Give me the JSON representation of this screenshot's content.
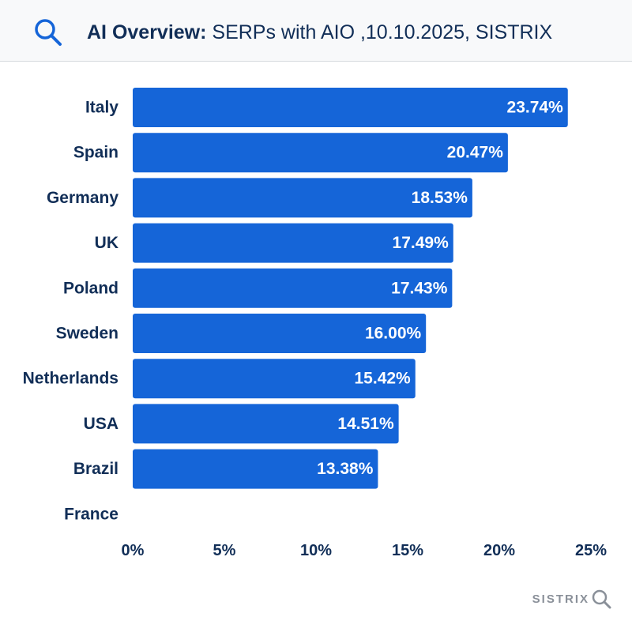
{
  "header": {
    "title_bold": "AI Overview:",
    "title_rest": " SERPs with AIO ,10.10.2025, SISTRIX",
    "icon": "search-icon"
  },
  "colors": {
    "bar": "#1565d8",
    "text": "#112e57",
    "header_bg": "#f8f9fa",
    "logo": "#8a9099"
  },
  "chart_data": {
    "type": "bar",
    "orientation": "horizontal",
    "categories": [
      "Italy",
      "Spain",
      "Germany",
      "UK",
      "Poland",
      "Sweden",
      "Netherlands",
      "USA",
      "Brazil",
      "France"
    ],
    "values": [
      23.74,
      20.47,
      18.53,
      17.49,
      17.43,
      16.0,
      15.42,
      14.51,
      13.38,
      null
    ],
    "value_labels": [
      "23.74%",
      "20.47%",
      "18.53%",
      "17.49%",
      "17.43%",
      "16.00%",
      "15.42%",
      "14.51%",
      "13.38%",
      ""
    ],
    "x_ticks": [
      0,
      5,
      10,
      15,
      20,
      25
    ],
    "x_tick_labels": [
      "0%",
      "5%",
      "10%",
      "15%",
      "20%",
      "25%"
    ],
    "xlim": [
      0,
      25
    ],
    "grid": false,
    "legend": "none"
  },
  "footer": {
    "logo_text": "SISTRIX",
    "icon": "magnifier-logo-icon"
  }
}
